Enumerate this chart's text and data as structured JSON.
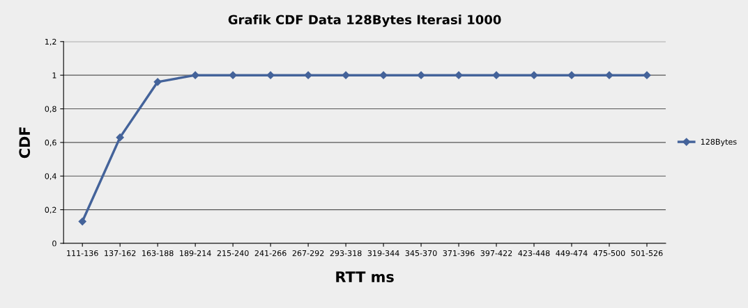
{
  "chart_data": {
    "type": "line",
    "title": "Grafik CDF Data 128Bytes Iterasi 1000",
    "xlabel": "RTT ms",
    "ylabel": "CDF",
    "categories": [
      "111-136",
      "137-162",
      "163-188",
      "189-214",
      "215-240",
      "241-266",
      "267-292",
      "293-318",
      "319-344",
      "345-370",
      "371-396",
      "397-422",
      "423-448",
      "449-474",
      "475-500",
      "501-526"
    ],
    "series": [
      {
        "name": "128Bytes",
        "color": "#44639a",
        "values": [
          0.13,
          0.63,
          0.96,
          1.0,
          1.0,
          1.0,
          1.0,
          1.0,
          1.0,
          1.0,
          1.0,
          1.0,
          1.0,
          1.0,
          1.0,
          1.0
        ]
      }
    ],
    "ylim": [
      0,
      1.2
    ],
    "yticks": [
      0,
      {
        "value": 0.2,
        "label": "0,2"
      },
      {
        "value": 0.4,
        "label": "0,4"
      },
      {
        "value": 0.6,
        "label": "0,6"
      },
      {
        "value": 0.8,
        "label": "0,8"
      },
      1,
      {
        "value": 1.2,
        "label": "1,2"
      }
    ],
    "grid": "y",
    "legend": "right",
    "marker": "diamond",
    "line_style": "solid"
  }
}
